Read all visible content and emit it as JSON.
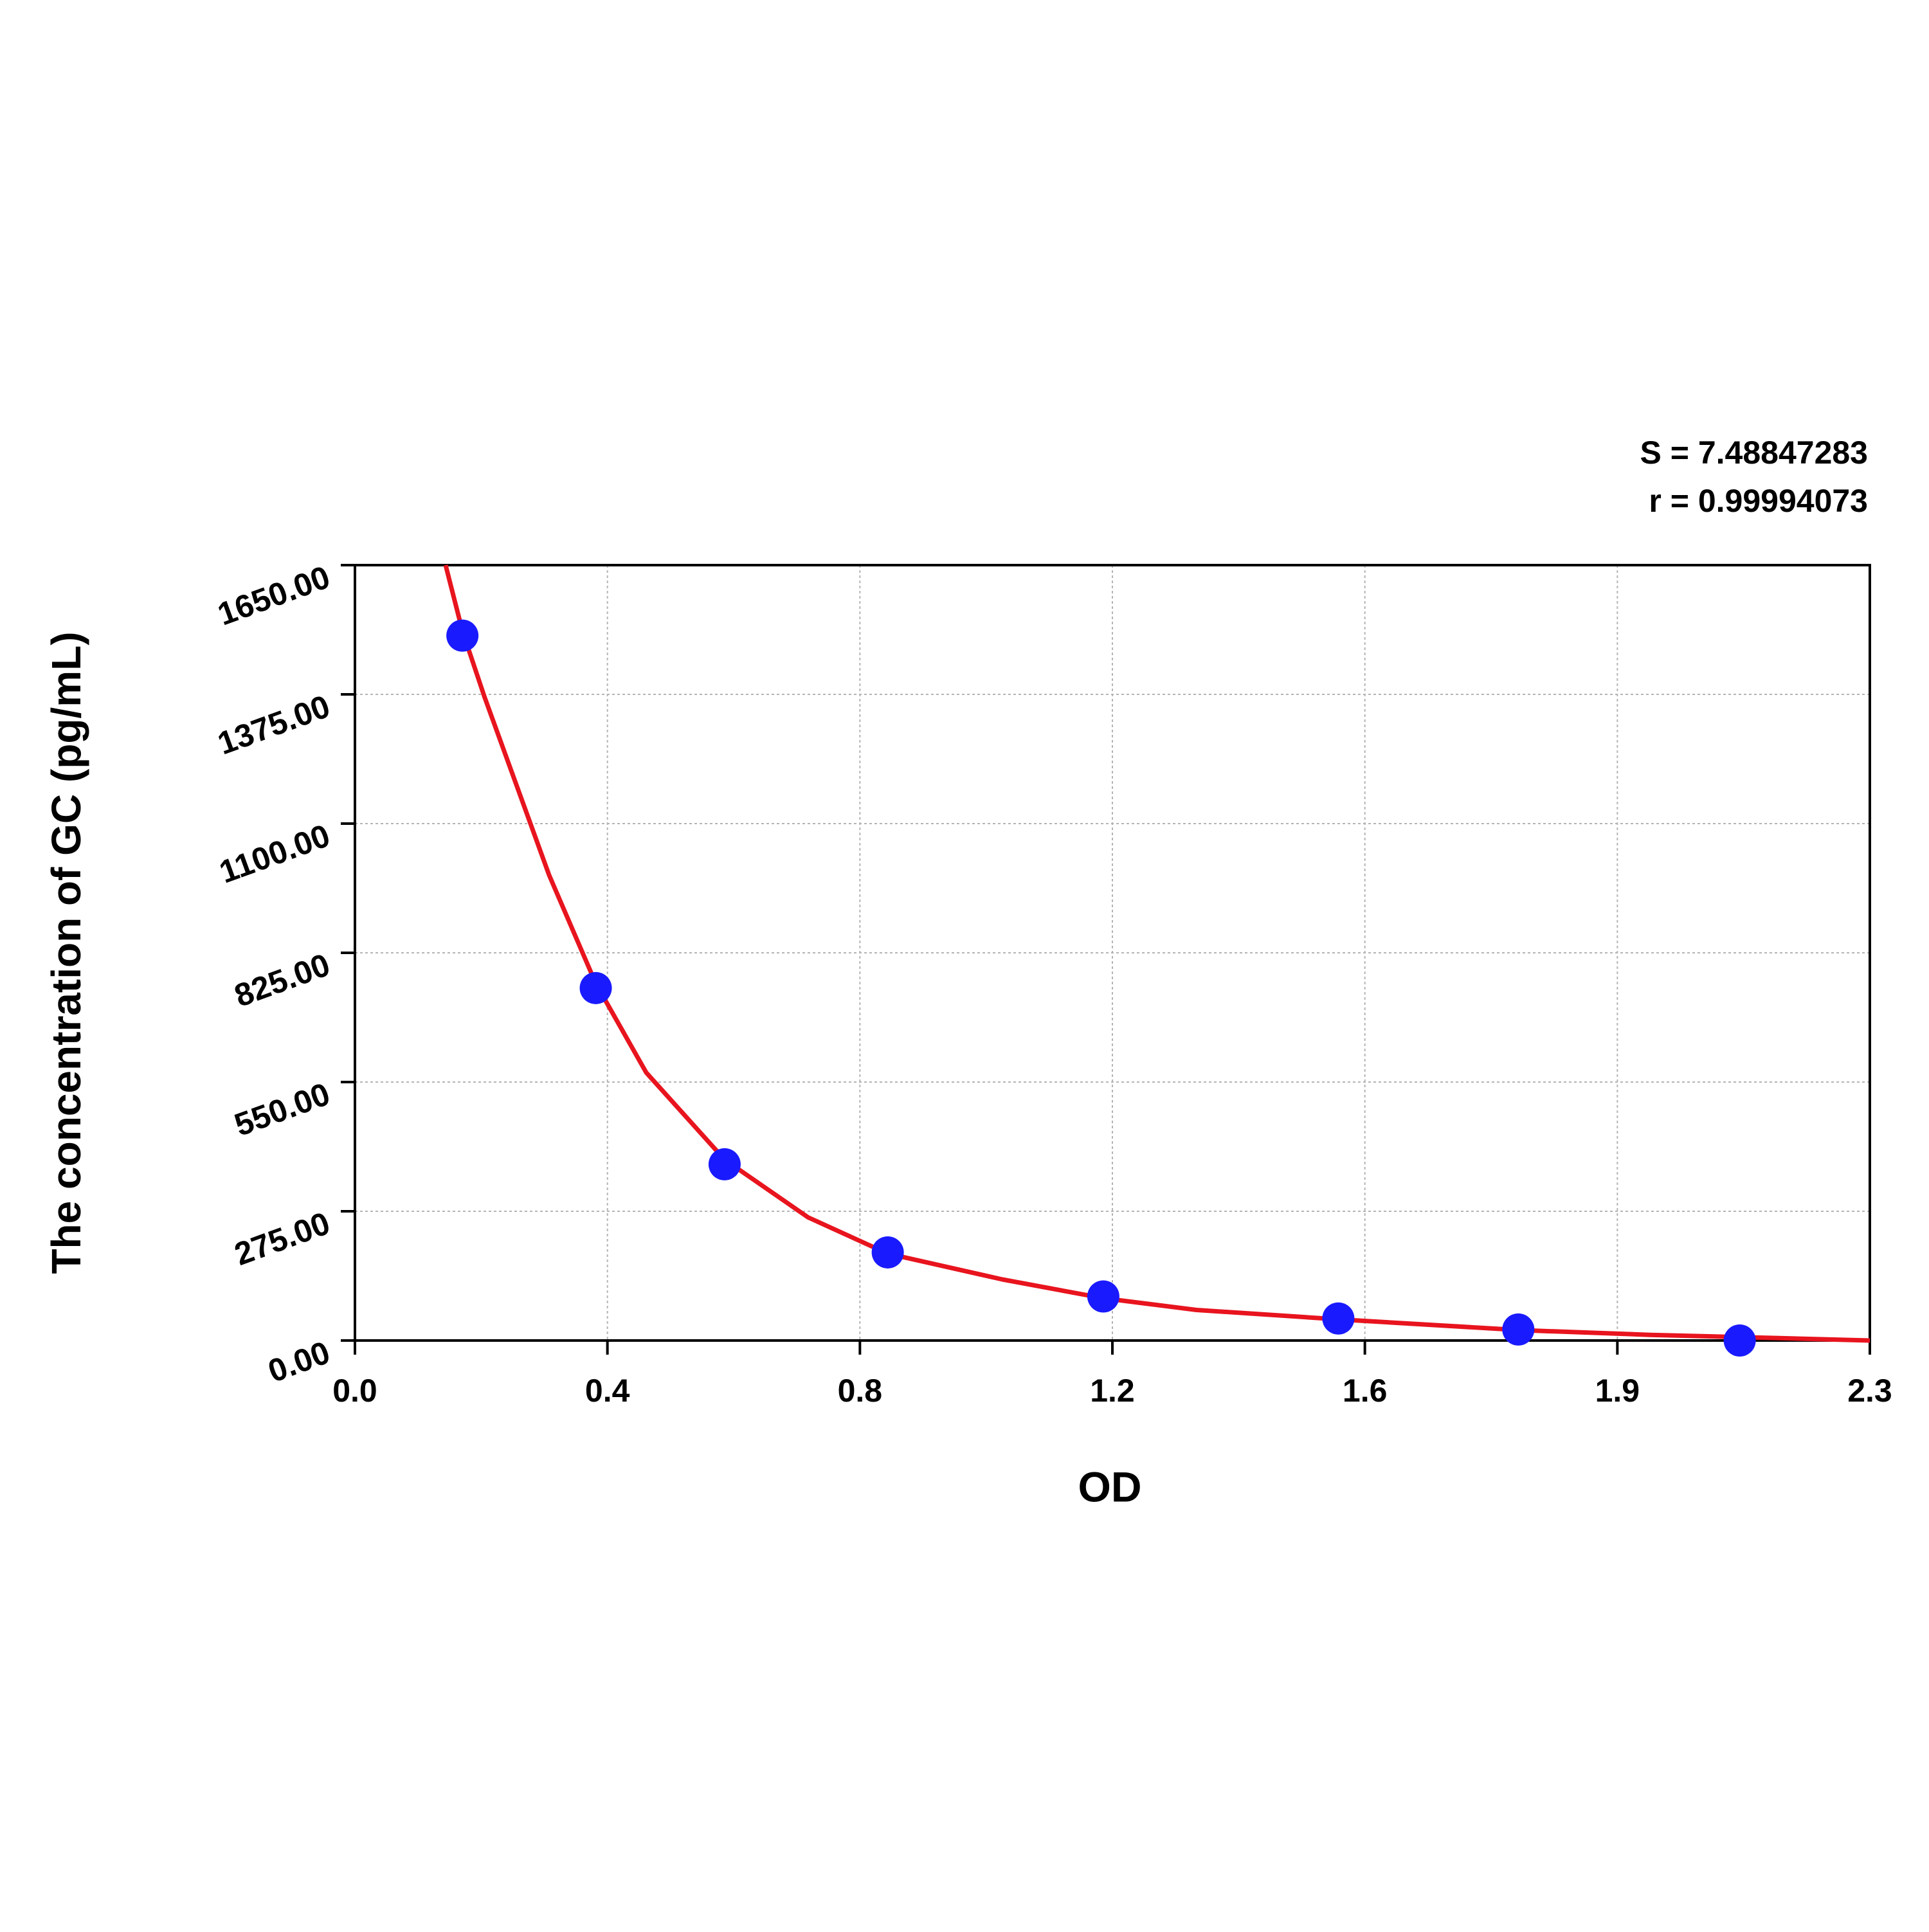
{
  "chart_data": {
    "type": "scatter",
    "x_label": "OD",
    "y_label": "The concentration of GC (pg/mL)",
    "annotations": [
      "S = 7.48847283",
      "r = 0.99994073"
    ],
    "xlim": [
      0,
      2.34
    ],
    "ylim": [
      0,
      1650
    ],
    "xticks": [
      {
        "value": 0,
        "label": "0.0"
      },
      {
        "value": 0.39,
        "label": "0.4"
      },
      {
        "value": 0.78,
        "label": "0.8"
      },
      {
        "value": 1.17,
        "label": "1.2"
      },
      {
        "value": 1.56,
        "label": "1.6"
      },
      {
        "value": 1.95,
        "label": "1.9"
      },
      {
        "value": 2.34,
        "label": "2.3"
      }
    ],
    "yticks": [
      {
        "value": 0,
        "label": "0.00"
      },
      {
        "value": 275,
        "label": "275.00"
      },
      {
        "value": 550,
        "label": "550.00"
      },
      {
        "value": 825,
        "label": "825.00"
      },
      {
        "value": 1100,
        "label": "1100.00"
      },
      {
        "value": 1375,
        "label": "1375.00"
      },
      {
        "value": 1650,
        "label": "1650.00"
      }
    ],
    "grid": true,
    "series": [
      {
        "kind": "points",
        "color": "#1a1aff",
        "x": [
          0.166,
          0.372,
          0.571,
          0.823,
          1.156,
          1.519,
          1.797,
          2.139
        ],
        "values": [
          1500,
          750,
          375,
          187.5,
          93.75,
          46.88,
          23.44,
          0
        ]
      },
      {
        "kind": "curve",
        "color": "#e8141e",
        "x": [
          0.14,
          0.166,
          0.2,
          0.3,
          0.372,
          0.45,
          0.571,
          0.7,
          0.823,
          1.0,
          1.156,
          1.3,
          1.519,
          1.8,
          2.0,
          2.2,
          2.34
        ],
        "values": [
          1650,
          1510,
          1370,
          990,
          760,
          570,
          385,
          262,
          185,
          130,
          90,
          65,
          45,
          22,
          12,
          5,
          0
        ]
      }
    ]
  }
}
